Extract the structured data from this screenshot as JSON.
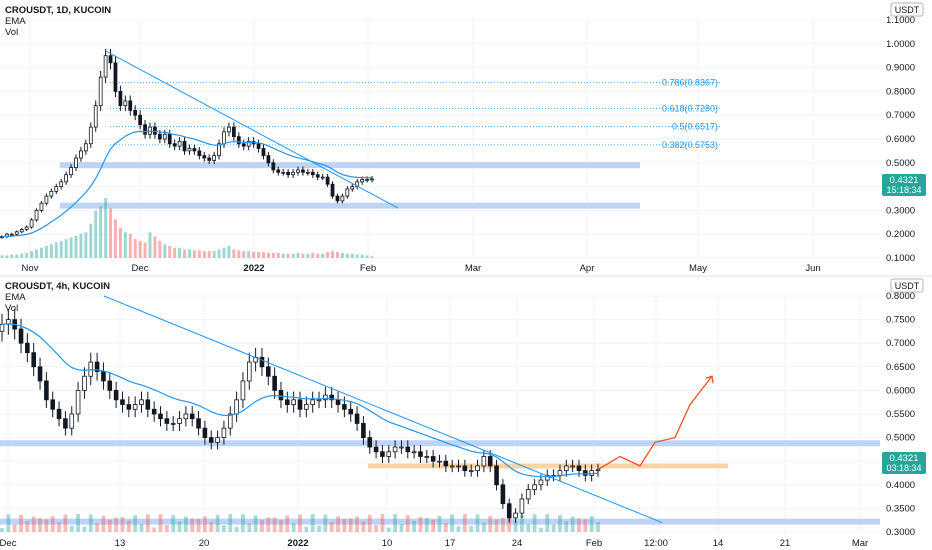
{
  "colors": {
    "up": "#26a69a",
    "down": "#ef5350",
    "candle_body": "#131722",
    "ema": "#2196f3",
    "trendline": "#2196f3",
    "zone": "#b3cdf5",
    "zone_orange": "#f9cf9c",
    "projection": "#f4511e",
    "fib_text": "#2196f3",
    "price_badge": "#26a69a",
    "grid": "#f0f3fa",
    "axis_text": "#131722"
  },
  "chart_data": [
    {
      "type": "candlestick",
      "symbol_line": "CROUSDT, 1D, KUCOIN",
      "indicators": [
        "EMA",
        "Vol"
      ],
      "currency": "USDT",
      "y_ticks": [
        "1.1000",
        "1.0000",
        "0.9000",
        "0.8000",
        "0.7000",
        "0.6000",
        "0.5000",
        "0.4000",
        "0.3000",
        "0.2000",
        "0.1000"
      ],
      "y_range": [
        0.1,
        1.1
      ],
      "x_ticks": [
        "Nov",
        "Dec",
        "2022",
        "Feb",
        "Mar",
        "Apr",
        "May",
        "Jun"
      ],
      "last_price": "0.4321",
      "countdown": "15:18:34",
      "fib_levels": [
        {
          "label": "0.786(0.8367)",
          "value": 0.8367
        },
        {
          "label": "0.618(0.7280)",
          "value": 0.728
        },
        {
          "label": "0.5(0.6517)",
          "value": 0.6517
        },
        {
          "label": "0.382(0.5753)",
          "value": 0.5753
        }
      ],
      "zones": [
        0.49,
        0.32
      ],
      "closes": [
        0.19,
        0.2,
        0.2,
        0.21,
        0.22,
        0.23,
        0.26,
        0.3,
        0.33,
        0.36,
        0.38,
        0.4,
        0.42,
        0.45,
        0.48,
        0.52,
        0.55,
        0.58,
        0.65,
        0.74,
        0.86,
        0.95,
        0.92,
        0.8,
        0.74,
        0.76,
        0.72,
        0.7,
        0.66,
        0.62,
        0.65,
        0.62,
        0.6,
        0.62,
        0.58,
        0.57,
        0.59,
        0.55,
        0.56,
        0.55,
        0.53,
        0.52,
        0.51,
        0.53,
        0.58,
        0.63,
        0.65,
        0.61,
        0.58,
        0.57,
        0.59,
        0.58,
        0.56,
        0.53,
        0.5,
        0.47,
        0.46,
        0.46,
        0.45,
        0.46,
        0.47,
        0.46,
        0.46,
        0.45,
        0.44,
        0.44,
        0.41,
        0.36,
        0.34,
        0.36,
        0.39,
        0.4,
        0.42,
        0.43,
        0.43,
        0.4321
      ],
      "volumes": [
        3,
        3,
        4,
        4,
        5,
        6,
        8,
        10,
        12,
        14,
        16,
        18,
        20,
        22,
        24,
        26,
        28,
        30,
        40,
        55,
        60,
        70,
        58,
        45,
        35,
        30,
        28,
        22,
        20,
        18,
        30,
        25,
        20,
        16,
        14,
        12,
        12,
        10,
        10,
        9,
        9,
        8,
        8,
        8,
        10,
        12,
        14,
        10,
        9,
        8,
        8,
        7,
        7,
        7,
        6,
        6,
        6,
        5,
        5,
        5,
        6,
        5,
        5,
        6,
        5,
        5,
        7,
        8,
        7,
        6,
        5,
        5,
        4,
        4,
        3,
        2
      ]
    },
    {
      "type": "candlestick",
      "symbol_line": "CROUSDT, 4h, KUCOIN",
      "indicators": [
        "EMA",
        "Vol"
      ],
      "currency": "USDT",
      "y_ticks": [
        "0.8000",
        "0.7500",
        "0.7000",
        "0.6500",
        "0.6000",
        "0.5500",
        "0.5000",
        "0.4500",
        "0.4000",
        "0.3500",
        "0.3000"
      ],
      "y_range": [
        0.3,
        0.8
      ],
      "x_ticks": [
        "Dec",
        "13",
        "20",
        "2022",
        "10",
        "17",
        "24",
        "Feb",
        "12:00",
        "14",
        "21",
        "Mar"
      ],
      "last_price": "0.4321",
      "countdown": "03:18:34",
      "zones": [
        0.488,
        0.322
      ],
      "orange_zone": 0.44,
      "closes": [
        0.74,
        0.75,
        0.73,
        0.7,
        0.68,
        0.65,
        0.62,
        0.58,
        0.56,
        0.54,
        0.52,
        0.55,
        0.6,
        0.63,
        0.66,
        0.64,
        0.62,
        0.6,
        0.58,
        0.57,
        0.56,
        0.57,
        0.58,
        0.56,
        0.55,
        0.54,
        0.53,
        0.53,
        0.54,
        0.55,
        0.54,
        0.52,
        0.5,
        0.49,
        0.5,
        0.52,
        0.55,
        0.58,
        0.62,
        0.66,
        0.67,
        0.65,
        0.63,
        0.6,
        0.58,
        0.57,
        0.58,
        0.56,
        0.57,
        0.58,
        0.58,
        0.59,
        0.58,
        0.57,
        0.56,
        0.55,
        0.53,
        0.5,
        0.48,
        0.47,
        0.46,
        0.47,
        0.48,
        0.48,
        0.47,
        0.47,
        0.46,
        0.46,
        0.45,
        0.45,
        0.44,
        0.44,
        0.44,
        0.43,
        0.43,
        0.44,
        0.46,
        0.44,
        0.4,
        0.36,
        0.33,
        0.34,
        0.37,
        0.39,
        0.4,
        0.41,
        0.42,
        0.42,
        0.43,
        0.44,
        0.44,
        0.43,
        0.42,
        0.43,
        0.4321
      ],
      "projection": [
        0.4321,
        0.46,
        0.44,
        0.49,
        0.5,
        0.57,
        0.63
      ]
    }
  ]
}
